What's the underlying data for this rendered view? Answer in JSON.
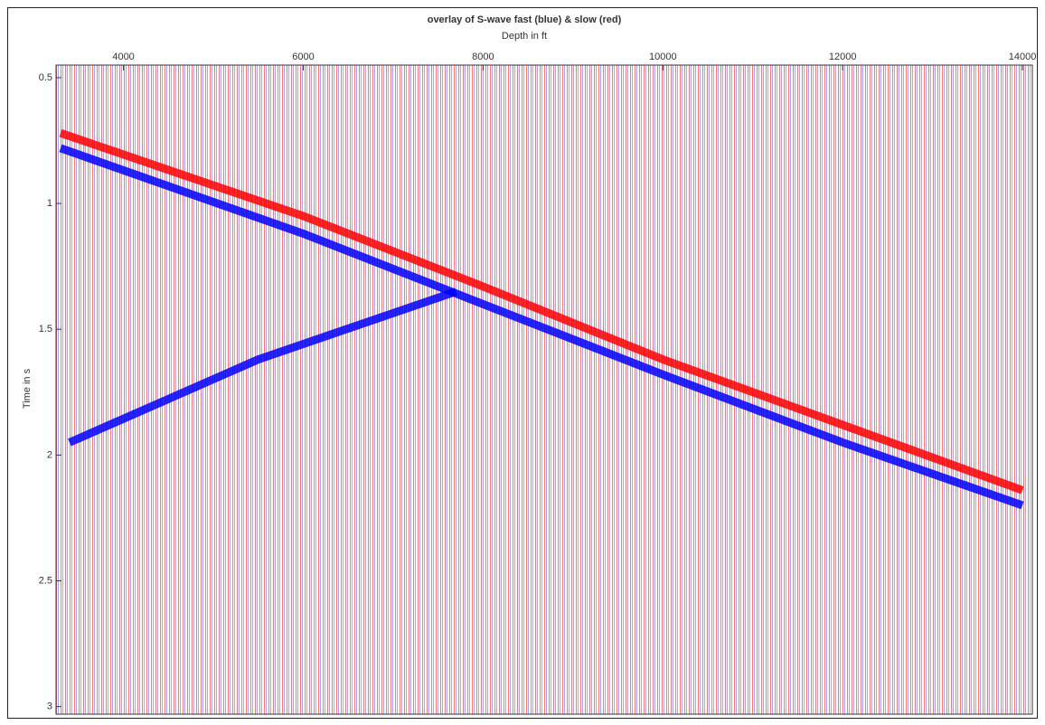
{
  "chart_data": {
    "type": "line",
    "title": "overlay of S-wave fast (blue) & slow (red)",
    "x_label": "Depth in ft",
    "y_label": "Time in s",
    "xlim": [
      3250,
      14110
    ],
    "xticks": [
      4000,
      6000,
      8000,
      10000,
      12000,
      14000
    ],
    "ylim": [
      3.03,
      0.45
    ],
    "yticks": [
      0.5,
      1,
      1.5,
      2,
      2.5,
      3
    ],
    "series": [
      {
        "color": "#0000ff",
        "x": [
          3300,
          6000,
          8000,
          10000,
          12000,
          14000
        ],
        "values": [
          0.78,
          1.12,
          1.4,
          1.68,
          1.95,
          2.2
        ]
      },
      {
        "color": "#ff0000",
        "x": [
          3300,
          6000,
          8000,
          10000,
          12000,
          14000
        ],
        "values": [
          0.72,
          1.05,
          1.33,
          1.62,
          1.88,
          2.14
        ]
      },
      {
        "color": "#0000ff",
        "x": [
          3400,
          5500,
          7700
        ],
        "values": [
          1.95,
          1.62,
          1.35
        ]
      }
    ]
  }
}
